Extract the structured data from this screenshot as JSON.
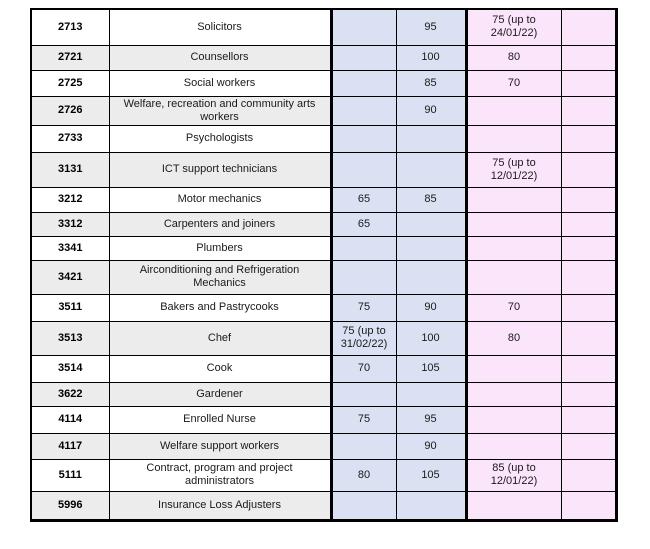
{
  "colors": {
    "stripe_gray": "#ececec",
    "value_blue": "#dae1f2",
    "value_pink": "#fbe5fb",
    "border_black": "#000000",
    "text": "#1a1a1a"
  },
  "table": {
    "rows": [
      {
        "code": "2713",
        "occupation": "Solicitors",
        "v1": "",
        "v2": "95",
        "v3": "75 (up to 24/01/22)",
        "v4": ""
      },
      {
        "code": "2721",
        "occupation": "Counsellors",
        "v1": "",
        "v2": "100",
        "v3": "80",
        "v4": ""
      },
      {
        "code": "2725",
        "occupation": "Social workers",
        "v1": "",
        "v2": "85",
        "v3": "70",
        "v4": ""
      },
      {
        "code": "2726",
        "occupation": "Welfare, recreation and community arts workers",
        "v1": "",
        "v2": "90",
        "v3": "",
        "v4": ""
      },
      {
        "code": "2733",
        "occupation": "Psychologists",
        "v1": "",
        "v2": "",
        "v3": "",
        "v4": ""
      },
      {
        "code": "3131",
        "occupation": "ICT support technicians",
        "v1": "",
        "v2": "",
        "v3": "75 (up to 12/01/22)",
        "v4": ""
      },
      {
        "code": "3212",
        "occupation": "Motor mechanics",
        "v1": "65",
        "v2": "85",
        "v3": "",
        "v4": ""
      },
      {
        "code": "3312",
        "occupation": "Carpenters and joiners",
        "v1": "65",
        "v2": "",
        "v3": "",
        "v4": ""
      },
      {
        "code": "3341",
        "occupation": "Plumbers",
        "v1": "",
        "v2": "",
        "v3": "",
        "v4": ""
      },
      {
        "code": "3421",
        "occupation": "Airconditioning and Refrigeration Mechanics",
        "v1": "",
        "v2": "",
        "v3": "",
        "v4": ""
      },
      {
        "code": "3511",
        "occupation": "Bakers and Pastrycooks",
        "v1": "75",
        "v2": "90",
        "v3": "70",
        "v4": ""
      },
      {
        "code": "3513",
        "occupation": "Chef",
        "v1": "75 (up to 31/02/22)",
        "v2": "100",
        "v3": "80",
        "v4": ""
      },
      {
        "code": "3514",
        "occupation": "Cook",
        "v1": "70",
        "v2": "105",
        "v3": "",
        "v4": ""
      },
      {
        "code": "3622",
        "occupation": "Gardener",
        "v1": "",
        "v2": "",
        "v3": "",
        "v4": ""
      },
      {
        "code": "4114",
        "occupation": "Enrolled Nurse",
        "v1": "75",
        "v2": "95",
        "v3": "",
        "v4": ""
      },
      {
        "code": "4117",
        "occupation": "Welfare support workers",
        "v1": "",
        "v2": "90",
        "v3": "",
        "v4": ""
      },
      {
        "code": "5111",
        "occupation": "Contract, program and project administrators",
        "v1": "80",
        "v2": "105",
        "v3": "85 (up to 12/01/22)",
        "v4": ""
      },
      {
        "code": "5996",
        "occupation": "Insurance Loss Adjusters",
        "v1": "",
        "v2": "",
        "v3": "",
        "v4": ""
      }
    ]
  }
}
